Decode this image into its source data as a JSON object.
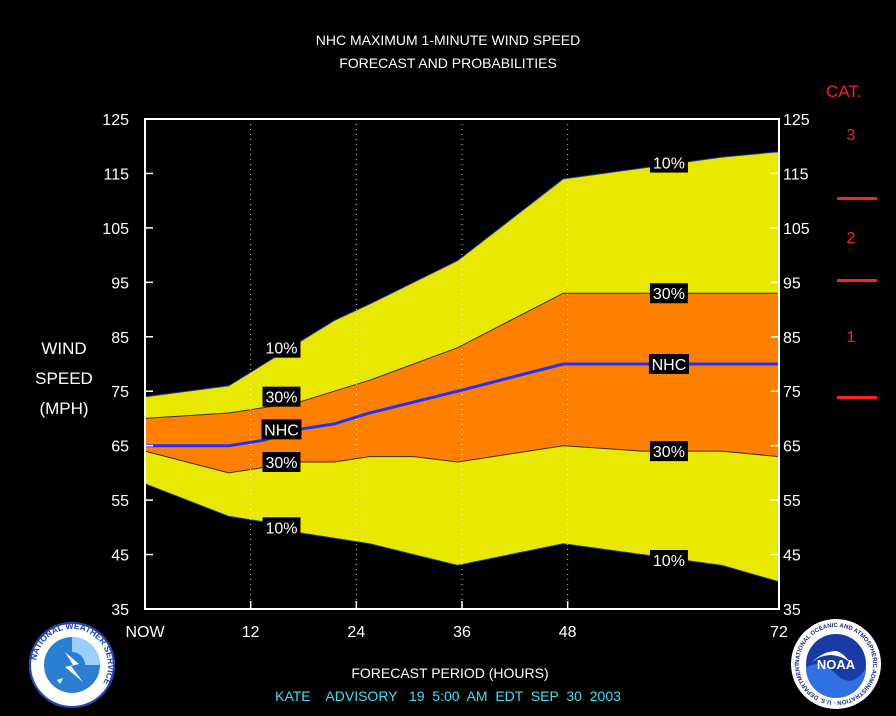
{
  "header": {
    "title_line1": "NHC MAXIMUM 1-MINUTE WIND SPEED",
    "title_line2": "FORECAST AND PROBABILITIES"
  },
  "y_axis_label": [
    "WIND",
    "SPEED",
    "(MPH)"
  ],
  "x_axis_label": "FORECAST PERIOD (HOURS)",
  "advisory": "KATE    ADVISORY   19  5:00  AM  EDT  SEP  30  2003",
  "category": {
    "title": "CAT.",
    "labels": [
      "3",
      "2",
      "1"
    ],
    "color": "#ff2020"
  },
  "logos": {
    "nws": "NATIONAL WEATHER SERVICE",
    "noaa": "NOAA",
    "noaa_ring": "NATIONAL OCEANIC AND ATMOSPHERIC ADMINISTRATION · U.S. DEPARTMENT OF COMMERCE"
  },
  "colors": {
    "band_10": "#e8e800",
    "band_30": "#ff8000",
    "nhc_line": "#2030ff",
    "advisory_text": "#40e0f0"
  },
  "chart_data": {
    "type": "area",
    "xlim": [
      0,
      72
    ],
    "ylim": [
      35,
      125
    ],
    "x_ticks": [
      0,
      12,
      24,
      36,
      48,
      72
    ],
    "x_tick_labels": [
      "NOW",
      "12",
      "24",
      "36",
      "48",
      "72"
    ],
    "y_ticks": [
      35,
      45,
      55,
      65,
      75,
      85,
      95,
      105,
      115,
      125
    ],
    "y_tick_labels": [
      "35",
      "45",
      "55",
      "65",
      "75",
      "85",
      "95",
      "105",
      "115",
      "125"
    ],
    "grid": "vertical dotted at 12, 24, 36, 48",
    "series": [
      {
        "name": "10%",
        "role": "upper",
        "x": [
          0,
          9.5,
          13.5,
          17.5,
          21.5,
          25.5,
          30.5,
          35.5,
          47.5,
          56.5,
          65.5,
          72
        ],
        "y": [
          74,
          76,
          80,
          84,
          88,
          91,
          95,
          99,
          114,
          116,
          118,
          119
        ]
      },
      {
        "name": "30%",
        "role": "upper",
        "x": [
          0,
          9.5,
          13.5,
          17.5,
          21.5,
          25.5,
          30.5,
          35.5,
          47.5,
          56.5,
          65.5,
          72
        ],
        "y": [
          70,
          71,
          72,
          73,
          75,
          77,
          80,
          83,
          93,
          93,
          93,
          93
        ]
      },
      {
        "name": "NHC",
        "role": "forecast",
        "x": [
          0,
          9.5,
          13.5,
          17.5,
          21.5,
          25.5,
          30.5,
          35.5,
          47.5,
          56.5,
          65.5,
          72
        ],
        "y": [
          65,
          65,
          66,
          68,
          69,
          71,
          73,
          75,
          80,
          80,
          80,
          80
        ]
      },
      {
        "name": "30%",
        "role": "lower",
        "x": [
          0,
          9.5,
          13.5,
          17.5,
          21.5,
          25.5,
          30.5,
          35.5,
          47.5,
          56.5,
          65.5,
          72
        ],
        "y": [
          64,
          60,
          61,
          62,
          62,
          63,
          63,
          62,
          65,
          64,
          64,
          63
        ]
      },
      {
        "name": "10%",
        "role": "lower",
        "x": [
          0,
          9.5,
          13.5,
          17.5,
          21.5,
          25.5,
          30.5,
          35.5,
          47.5,
          56.5,
          65.5,
          72
        ],
        "y": [
          58,
          52,
          51,
          49,
          48,
          47,
          45,
          43,
          47,
          45,
          43,
          40
        ]
      }
    ],
    "annotations": [
      {
        "text": "10%",
        "x": 15.5,
        "y": 83
      },
      {
        "text": "30%",
        "x": 15.5,
        "y": 74
      },
      {
        "text": "NHC",
        "x": 15.5,
        "y": 68
      },
      {
        "text": "30%",
        "x": 15.5,
        "y": 62
      },
      {
        "text": "10%",
        "x": 15.5,
        "y": 50
      },
      {
        "text": "10%",
        "x": 59.5,
        "y": 117
      },
      {
        "text": "30%",
        "x": 59.5,
        "y": 93
      },
      {
        "text": "NHC",
        "x": 59.5,
        "y": 80
      },
      {
        "text": "30%",
        "x": 59.5,
        "y": 64
      },
      {
        "text": "10%",
        "x": 59.5,
        "y": 44
      }
    ]
  }
}
